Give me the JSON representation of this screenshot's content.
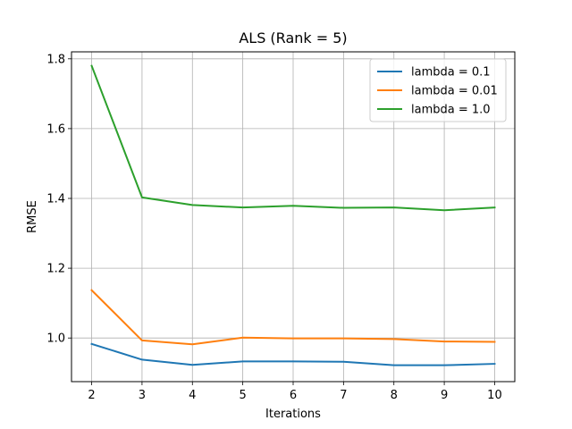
{
  "chart_data": {
    "type": "line",
    "title": "ALS (Rank = 5)",
    "xlabel": "Iterations",
    "ylabel": "RMSE",
    "x": [
      2,
      3,
      4,
      5,
      6,
      7,
      8,
      9,
      10
    ],
    "xticks": [
      "2",
      "3",
      "4",
      "5",
      "6",
      "7",
      "8",
      "9",
      "10"
    ],
    "yticks": [
      "1.0",
      "1.2",
      "1.4",
      "1.6",
      "1.8"
    ],
    "xlim": [
      1.6,
      10.4
    ],
    "ylim": [
      0.875,
      1.82
    ],
    "grid": true,
    "legend_position": "top-right",
    "series": [
      {
        "name": "lambda = 0.1",
        "color": "#1f77b4",
        "values": [
          0.983,
          0.938,
          0.923,
          0.933,
          0.933,
          0.932,
          0.922,
          0.922,
          0.926
        ]
      },
      {
        "name": "lambda = 0.01",
        "color": "#ff7f0e",
        "values": [
          1.137,
          0.993,
          0.982,
          1.001,
          0.999,
          0.999,
          0.997,
          0.99,
          0.989
        ]
      },
      {
        "name": "lambda = 1.0",
        "color": "#2ca02c",
        "values": [
          1.78,
          1.403,
          1.381,
          1.374,
          1.379,
          1.373,
          1.374,
          1.366,
          1.374
        ]
      }
    ]
  }
}
